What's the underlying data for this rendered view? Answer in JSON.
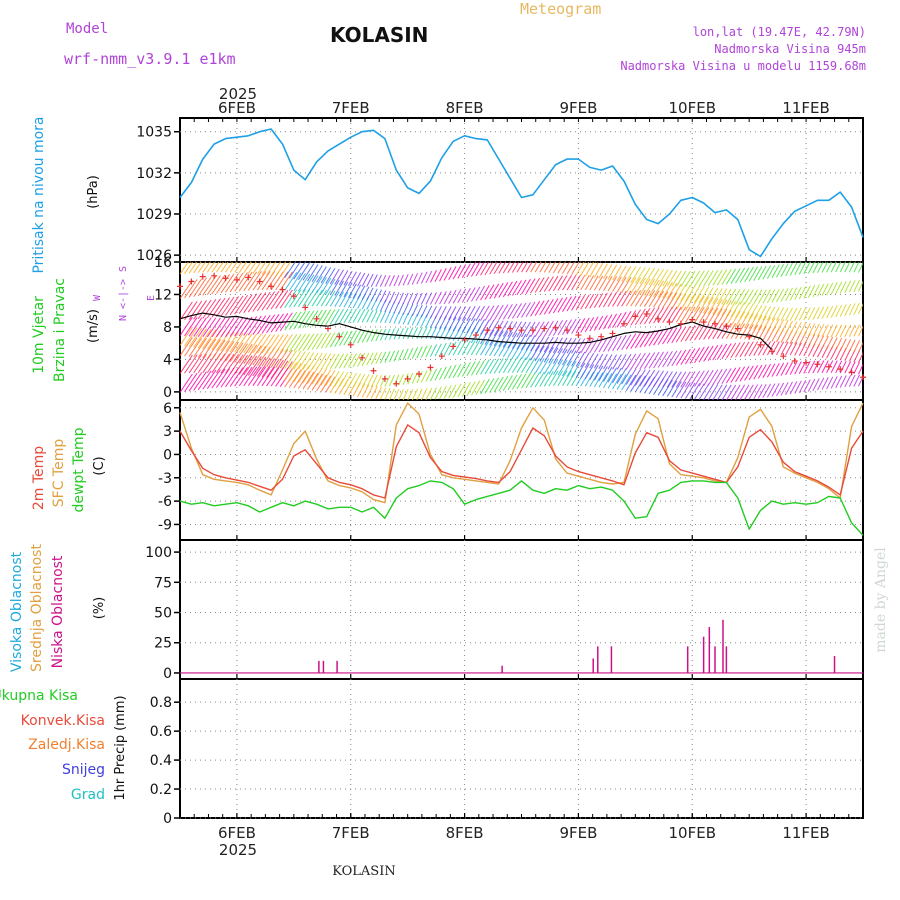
{
  "header": {
    "model_label": "Model",
    "model_name": "wrf-nmm_v3.9.1 e1km",
    "station": "KOLASIN",
    "product": "Meteogram",
    "lonlat": "lon,lat (19.47E, 42.79N)",
    "altitude": "Nadmorska Visina 945m",
    "model_altitude": "Nadmorska Visina u modelu 1159.68m"
  },
  "footer": {
    "station": "KOLASIN",
    "credit": "made by Angel"
  },
  "time_axis": {
    "year": "2025",
    "days": [
      "6FEB",
      "7FEB",
      "8FEB",
      "9FEB",
      "10FEB",
      "11FEB"
    ],
    "range_days": [
      5.5,
      11.5
    ]
  },
  "colors": {
    "pressure": "#1ea0e6",
    "temp2m": "#e84b3a",
    "sfc_temp": "#e0a040",
    "dewpoint": "#22cc22",
    "cloud_low": "#cc1188",
    "wind_obs": "#e83030",
    "wind_speed": "#000000"
  },
  "chart_data": [
    {
      "type": "line",
      "panel": "pressure",
      "ylabel": "Pritisak na nivou mora",
      "unit": "(hPa)",
      "yticks": [
        1026,
        1029,
        1032,
        1035
      ],
      "ylim": [
        1025.5,
        1036.0
      ],
      "series": [
        {
          "x": [
            5.5,
            5.6,
            5.7,
            5.8,
            5.9,
            6.0,
            6.1,
            6.2,
            6.3,
            6.4,
            6.5,
            6.6,
            6.7,
            6.8,
            6.9,
            7.0,
            7.1,
            7.2,
            7.3,
            7.4,
            7.5,
            7.6,
            7.7,
            7.8,
            7.9,
            8.0,
            8.1,
            8.2,
            8.3,
            8.4,
            8.5,
            8.6,
            8.7,
            8.8,
            8.9,
            9.0,
            9.1,
            9.2,
            9.3,
            9.4,
            9.5,
            9.6,
            9.7,
            9.8,
            9.9,
            10.0,
            10.1,
            10.2,
            10.3,
            10.4,
            10.5,
            10.6,
            10.7,
            10.8,
            10.9,
            11.0,
            11.1,
            11.2,
            11.3,
            11.4,
            11.5
          ],
          "values": [
            1030.2,
            1031.3,
            1033.0,
            1034.1,
            1034.5,
            1034.6,
            1034.7,
            1035.0,
            1035.2,
            1034.1,
            1032.2,
            1031.5,
            1032.8,
            1033.6,
            1034.1,
            1034.6,
            1035.0,
            1035.1,
            1034.5,
            1032.2,
            1030.9,
            1030.5,
            1031.4,
            1033.1,
            1034.3,
            1034.7,
            1034.5,
            1034.4,
            1033.0,
            1031.6,
            1030.2,
            1030.4,
            1031.5,
            1032.6,
            1033.0,
            1033.0,
            1032.4,
            1032.2,
            1032.5,
            1031.4,
            1029.7,
            1028.6,
            1028.3,
            1029.0,
            1030.0,
            1030.2,
            1029.8,
            1029.1,
            1029.3,
            1028.6,
            1026.4,
            1025.9,
            1027.2,
            1028.3,
            1029.2,
            1029.6,
            1030.0,
            1030.0,
            1030.6,
            1029.5,
            1027.3
          ]
        }
      ]
    },
    {
      "type": "line",
      "panel": "wind",
      "ylabel": [
        "10m Vjetar",
        "Brzina i Pravac"
      ],
      "unit": "(m/s)",
      "compass": {
        "n": "N",
        "e": "E",
        "s": "S",
        "w": "W"
      },
      "yticks": [
        0,
        4,
        8,
        12,
        16
      ],
      "ylim": [
        -1.0,
        16.0
      ],
      "series": [
        {
          "name": "wind_speed",
          "x": [
            5.5,
            5.6,
            5.7,
            5.8,
            5.9,
            6.0,
            6.1,
            6.2,
            6.3,
            6.4,
            6.5,
            6.6,
            6.7,
            6.8,
            6.9,
            7.0,
            7.1,
            7.2,
            7.3,
            7.4,
            7.5,
            7.6,
            7.7,
            7.8,
            7.9,
            8.0,
            8.1,
            8.2,
            8.3,
            8.4,
            8.5,
            8.6,
            8.7,
            8.8,
            8.9,
            9.0,
            9.1,
            9.2,
            9.3,
            9.4,
            9.5,
            9.6,
            9.7,
            9.8,
            9.9,
            10.0,
            10.1,
            10.2,
            10.3,
            10.4,
            10.5,
            10.6,
            10.7
          ],
          "values": [
            9.0,
            9.4,
            9.7,
            9.5,
            9.2,
            9.3,
            9.0,
            8.8,
            8.5,
            8.6,
            8.7,
            8.4,
            8.2,
            8.1,
            8.4,
            8.0,
            7.6,
            7.3,
            7.1,
            7.0,
            6.9,
            6.8,
            6.8,
            6.7,
            6.6,
            6.6,
            6.5,
            6.4,
            6.2,
            6.1,
            6.0,
            6.0,
            6.0,
            6.1,
            6.0,
            6.0,
            6.1,
            6.4,
            6.8,
            7.2,
            7.4,
            7.3,
            7.5,
            7.8,
            8.3,
            8.6,
            8.1,
            7.8,
            7.4,
            7.1,
            7.0,
            6.6,
            5.2
          ]
        },
        {
          "name": "observed",
          "x": [
            5.5,
            5.6,
            5.7,
            5.8,
            5.9,
            6.0,
            6.1,
            6.2,
            6.3,
            6.4,
            6.5,
            6.6,
            6.7,
            6.8,
            6.9,
            7.0,
            7.1,
            7.2,
            7.3,
            7.4,
            7.5,
            7.6,
            7.7,
            7.8,
            7.9,
            8.0,
            8.1,
            8.2,
            8.3,
            8.4,
            8.5,
            8.6,
            8.7,
            8.8,
            8.9,
            9.0,
            9.1,
            9.2,
            9.3,
            9.4,
            9.5,
            9.6,
            9.7,
            9.8,
            9.9,
            10.0,
            10.1,
            10.2,
            10.3,
            10.4,
            10.5,
            10.6,
            10.7,
            10.8,
            10.9,
            11.0,
            11.1,
            11.2,
            11.3,
            11.4,
            11.5
          ],
          "values": [
            13.0,
            13.6,
            14.2,
            14.3,
            14.0,
            13.8,
            14.1,
            13.6,
            13.0,
            12.6,
            11.8,
            10.4,
            9.0,
            7.8,
            6.8,
            5.8,
            4.2,
            2.6,
            1.6,
            1.0,
            1.6,
            2.2,
            3.0,
            4.4,
            5.6,
            6.4,
            7.0,
            7.6,
            7.9,
            7.8,
            7.6,
            7.6,
            7.8,
            7.9,
            7.6,
            7.0,
            6.6,
            6.8,
            7.2,
            8.4,
            9.3,
            9.6,
            9.0,
            8.6,
            8.4,
            8.9,
            8.6,
            8.4,
            8.1,
            7.8,
            6.8,
            5.8,
            5.0,
            4.4,
            3.8,
            3.6,
            3.4,
            3.1,
            2.8,
            2.4,
            1.8
          ]
        }
      ]
    },
    {
      "type": "line",
      "panel": "temperature",
      "ylabel": [
        "2m Temp",
        "SFC Temp",
        "dewpt Temp"
      ],
      "unit": "(C)",
      "yticks": [
        -9,
        -6,
        -3,
        0,
        3,
        6
      ],
      "ylim": [
        -11.0,
        7.0
      ],
      "series": [
        {
          "name": "2m Temp",
          "x": [
            5.5,
            5.6,
            5.7,
            5.8,
            5.9,
            6.0,
            6.1,
            6.2,
            6.3,
            6.4,
            6.5,
            6.6,
            6.7,
            6.8,
            6.9,
            7.0,
            7.1,
            7.2,
            7.3,
            7.4,
            7.5,
            7.6,
            7.7,
            7.8,
            7.9,
            8.0,
            8.1,
            8.2,
            8.3,
            8.4,
            8.5,
            8.6,
            8.7,
            8.8,
            8.9,
            9.0,
            9.1,
            9.2,
            9.3,
            9.4,
            9.5,
            9.6,
            9.7,
            9.8,
            9.9,
            10.0,
            10.1,
            10.2,
            10.3,
            10.4,
            10.5,
            10.6,
            10.7,
            10.8,
            10.9,
            11.0,
            11.1,
            11.2,
            11.3,
            11.4,
            11.5
          ],
          "values": [
            3.0,
            0.5,
            -1.8,
            -2.6,
            -3.0,
            -3.3,
            -3.6,
            -4.1,
            -4.6,
            -3.2,
            -0.2,
            0.6,
            -1.2,
            -3.0,
            -3.6,
            -3.9,
            -4.4,
            -5.2,
            -5.6,
            1.0,
            3.8,
            2.8,
            -0.4,
            -2.2,
            -2.7,
            -2.9,
            -3.1,
            -3.4,
            -3.6,
            -2.2,
            0.6,
            3.4,
            2.4,
            -0.2,
            -1.6,
            -2.2,
            -2.6,
            -3.0,
            -3.4,
            -3.9,
            0.2,
            2.8,
            2.2,
            -0.8,
            -2.0,
            -2.4,
            -2.8,
            -3.2,
            -3.6,
            -1.6,
            2.2,
            3.2,
            1.6,
            -1.0,
            -2.2,
            -2.8,
            -3.4,
            -4.2,
            -5.2,
            0.8,
            3.0
          ]
        },
        {
          "name": "SFC Temp",
          "x": [
            5.5,
            5.6,
            5.7,
            5.8,
            5.9,
            6.0,
            6.1,
            6.2,
            6.3,
            6.4,
            6.5,
            6.6,
            6.7,
            6.8,
            6.9,
            7.0,
            7.1,
            7.2,
            7.3,
            7.4,
            7.5,
            7.6,
            7.7,
            7.8,
            7.9,
            8.0,
            8.1,
            8.2,
            8.3,
            8.4,
            8.5,
            8.6,
            8.7,
            8.8,
            8.9,
            9.0,
            9.1,
            9.2,
            9.3,
            9.4,
            9.5,
            9.6,
            9.7,
            9.8,
            9.9,
            10.0,
            10.1,
            10.2,
            10.3,
            10.4,
            10.5,
            10.6,
            10.7,
            10.8,
            10.9,
            11.0,
            11.1,
            11.2,
            11.3,
            11.4,
            11.5
          ],
          "values": [
            5.4,
            0.8,
            -2.6,
            -3.2,
            -3.4,
            -3.6,
            -3.9,
            -4.6,
            -5.2,
            -2.0,
            1.4,
            3.0,
            -0.6,
            -3.4,
            -4.0,
            -4.3,
            -4.8,
            -5.8,
            -6.2,
            3.8,
            6.6,
            5.2,
            0.0,
            -2.6,
            -3.0,
            -3.2,
            -3.4,
            -3.6,
            -3.8,
            -0.8,
            3.4,
            6.0,
            4.4,
            -0.6,
            -2.4,
            -2.8,
            -3.2,
            -3.6,
            -3.8,
            -3.6,
            2.6,
            5.6,
            4.6,
            -1.2,
            -2.6,
            -2.8,
            -3.0,
            -3.4,
            -3.6,
            -0.4,
            4.8,
            5.8,
            3.6,
            -1.6,
            -2.4,
            -3.0,
            -3.6,
            -4.4,
            -5.6,
            3.6,
            6.6
          ]
        },
        {
          "name": "dewpt Temp",
          "x": [
            5.5,
            5.6,
            5.7,
            5.8,
            5.9,
            6.0,
            6.1,
            6.2,
            6.3,
            6.4,
            6.5,
            6.6,
            6.7,
            6.8,
            6.9,
            7.0,
            7.1,
            7.2,
            7.3,
            7.4,
            7.5,
            7.6,
            7.7,
            7.8,
            7.9,
            8.0,
            8.1,
            8.2,
            8.3,
            8.4,
            8.5,
            8.6,
            8.7,
            8.8,
            8.9,
            9.0,
            9.1,
            9.2,
            9.3,
            9.4,
            9.5,
            9.6,
            9.7,
            9.8,
            9.9,
            10.0,
            10.1,
            10.2,
            10.3,
            10.4,
            10.5,
            10.6,
            10.7,
            10.8,
            10.9,
            11.0,
            11.1,
            11.2,
            11.3,
            11.4,
            11.5
          ],
          "values": [
            -6.0,
            -6.4,
            -6.2,
            -6.6,
            -6.4,
            -6.2,
            -6.6,
            -7.4,
            -6.8,
            -6.2,
            -6.6,
            -6.0,
            -6.4,
            -7.0,
            -6.8,
            -6.8,
            -7.4,
            -6.8,
            -8.2,
            -5.6,
            -4.4,
            -4.0,
            -3.4,
            -3.6,
            -4.4,
            -6.4,
            -5.8,
            -5.4,
            -5.0,
            -4.6,
            -3.4,
            -4.6,
            -5.0,
            -4.4,
            -4.6,
            -4.0,
            -4.4,
            -4.2,
            -4.6,
            -6.0,
            -8.2,
            -8.0,
            -5.0,
            -4.6,
            -3.6,
            -3.4,
            -3.4,
            -3.6,
            -3.6,
            -5.6,
            -9.6,
            -7.2,
            -6.0,
            -6.4,
            -6.2,
            -6.4,
            -6.2,
            -5.4,
            -5.6,
            -8.8,
            -10.4
          ]
        }
      ]
    },
    {
      "type": "bar",
      "panel": "cloud",
      "ylabel": [
        "Visoka Oblacnost",
        "Srednja Oblacnost",
        "Niska Oblacnost"
      ],
      "unit": "(%)",
      "yticks": [
        0,
        25,
        50,
        75,
        100
      ],
      "ylim": [
        -5,
        110
      ],
      "series": [
        {
          "name": "Niska Oblacnost",
          "x": [
            6.72,
            6.76,
            6.88,
            8.33,
            9.13,
            9.17,
            9.29,
            9.96,
            10.1,
            10.15,
            10.2,
            10.27,
            10.3,
            11.25
          ],
          "values": [
            10,
            10,
            10,
            6,
            12,
            22,
            22,
            22,
            30,
            38,
            22,
            44,
            22,
            14
          ]
        }
      ]
    },
    {
      "type": "bar",
      "panel": "precip",
      "ylabel": "1hr Precip",
      "unit": "(mm)",
      "legend": [
        "Ukupna Kisa",
        "Konvek.Kisa",
        "Zaledj.Kisa",
        "Snijeg",
        "Grad"
      ],
      "yticks": [
        0,
        0.2,
        0.4,
        0.6,
        0.8
      ],
      "ylim": [
        0,
        0.96
      ],
      "series": []
    }
  ]
}
